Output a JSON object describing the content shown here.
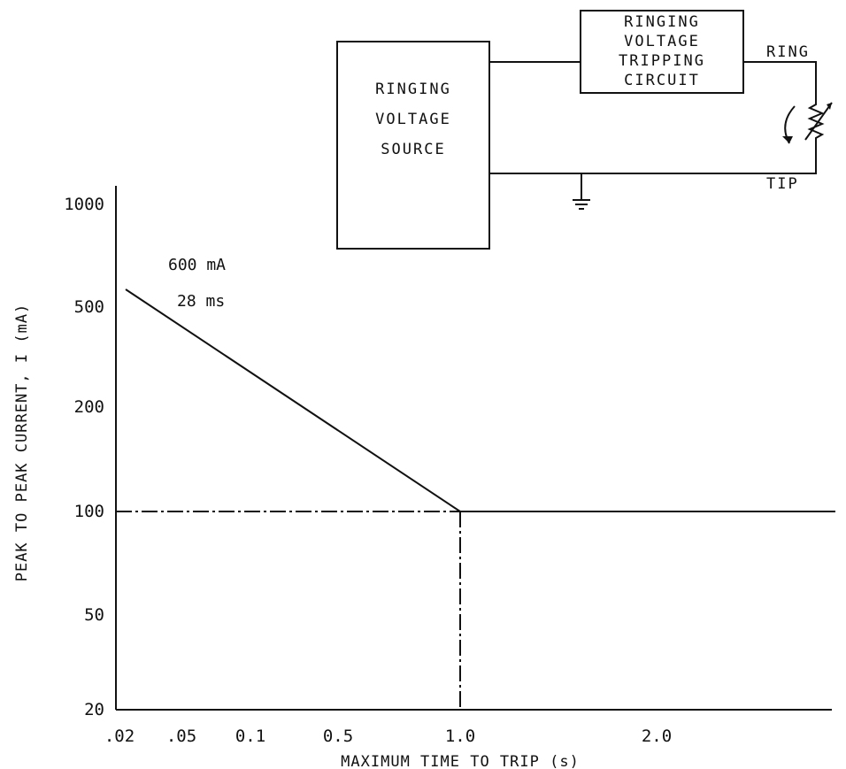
{
  "chart_data": {
    "type": "line",
    "xlabel": "MAXIMUM TIME TO TRIP (s)",
    "ylabel": "PEAK TO PEAK CURRENT, I (mA)",
    "x_ticks": [
      ".02",
      ".05",
      "0.1",
      "0.5",
      "1.0",
      "2.0"
    ],
    "y_ticks": [
      "1000",
      "500",
      "200",
      "100",
      "50",
      "20"
    ],
    "series": [
      {
        "x": [
          0.02,
          1.0,
          2.0
        ],
        "y": [
          600,
          100,
          100
        ]
      }
    ],
    "reference_lines": [
      {
        "orientation": "horizontal",
        "value": 100,
        "style": "dash-dot"
      },
      {
        "orientation": "vertical",
        "value": 1.0,
        "style": "dash-dot"
      }
    ],
    "annotations": [
      "600 mA",
      "28 ms"
    ]
  },
  "circuit": {
    "source_lines": [
      "RINGING",
      "VOLTAGE",
      "SOURCE"
    ],
    "trip_lines": [
      "RINGING",
      "VOLTAGE",
      "TRIPPING",
      "CIRCUIT"
    ],
    "ring_label": "RING",
    "tip_label": "TIP"
  }
}
